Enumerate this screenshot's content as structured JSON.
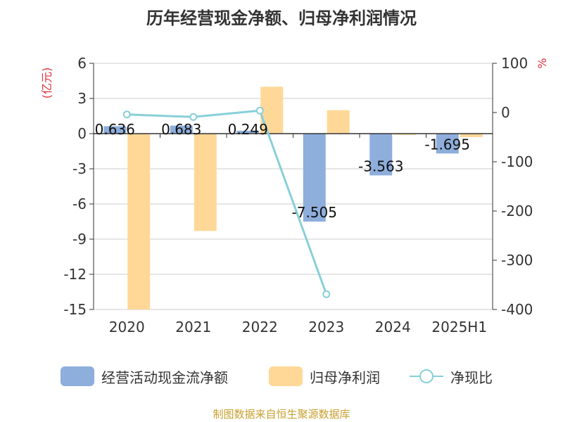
{
  "title": "历年经营现金净额、归母净利润情况",
  "source": "制图数据来自恒生聚源数据库",
  "colors": {
    "cash_flow": "#8eaedc",
    "net_profit": "#ffd898",
    "ratio": "#88d0d8",
    "unit_red": "#e0323c",
    "grid": "#cccccc",
    "axis": "#333333"
  },
  "chart_data": {
    "type": "bar",
    "categories": [
      "2020",
      "2021",
      "2022",
      "2023",
      "2024",
      "2025H1"
    ],
    "y_left": {
      "label": "(亿元)",
      "min": -15,
      "max": 6,
      "ticks": [
        6,
        3,
        0,
        -3,
        -6,
        -9,
        -12,
        -15
      ]
    },
    "y_right": {
      "label": "%",
      "min": -400,
      "max": 100,
      "ticks": [
        100,
        0,
        -100,
        -200,
        -300,
        -400
      ]
    },
    "grid": true,
    "legend_position": "bottom",
    "series": [
      {
        "name": "经营活动现金流净额",
        "kind": "bar",
        "axis": "left",
        "values": [
          0.636,
          0.683,
          0.249,
          -7.505,
          -3.563,
          -1.695
        ],
        "labels": [
          "0.636",
          "0.683",
          "0.249",
          "-7.505",
          "-3.563",
          "-1.695"
        ]
      },
      {
        "name": "归母净利润",
        "kind": "bar",
        "axis": "left",
        "values": [
          -15.0,
          -8.3,
          4.0,
          2.0,
          -0.1,
          -0.3
        ]
      },
      {
        "name": "净现比",
        "kind": "line",
        "axis": "right",
        "values": [
          -4,
          -9,
          4,
          -369,
          null,
          null
        ]
      }
    ]
  }
}
